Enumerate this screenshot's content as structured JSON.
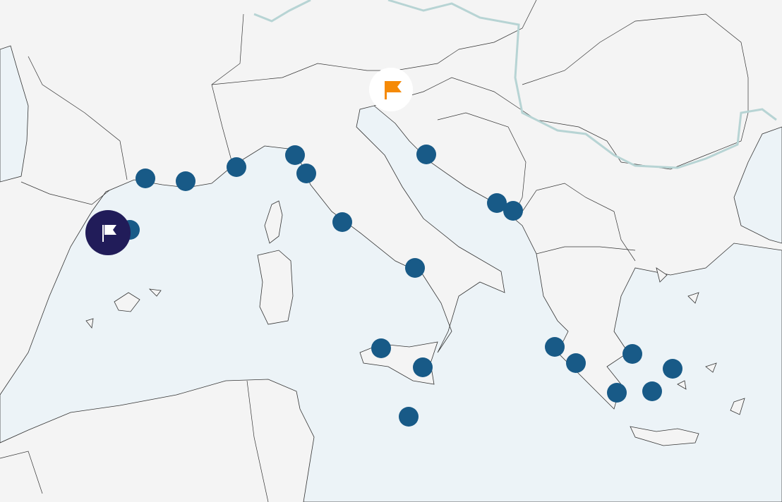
{
  "map": {
    "land_color": "#f4f4f4",
    "sea_color": "#ecf3f7",
    "border_color": "#333333",
    "river_color": "#b7d4d4",
    "port_marker_color": "#185a87",
    "port_marker_count": 20
  },
  "selected_marker": {
    "icon": "flag-icon",
    "background": "#211c59",
    "icon_color": "#ffffff"
  },
  "destination_marker": {
    "icon": "flag-icon",
    "background": "#ffffff",
    "icon_color": "#f58a07"
  }
}
